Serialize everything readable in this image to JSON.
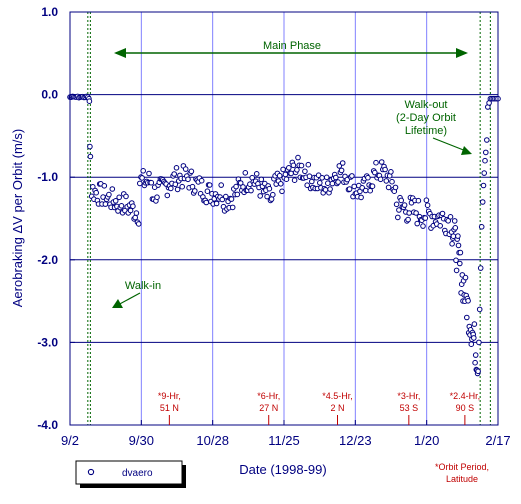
{
  "chart_data": {
    "type": "scatter",
    "xlabel": "Date (1998-99)",
    "ylabel": "Aerobraking ΔV per Orbit (m/s)",
    "x_ticks": [
      "9/2",
      "9/30",
      "10/28",
      "11/25",
      "12/23",
      "1/20",
      "2/17"
    ],
    "x_tick_days": [
      0,
      28,
      56,
      84,
      112,
      140,
      168
    ],
    "xlim": [
      0,
      168
    ],
    "y_ticks": [
      "1.0",
      "0.0",
      "-1.0",
      "-2.0",
      "-3.0",
      "-4.0"
    ],
    "y_tick_values": [
      1,
      0,
      -1,
      -2,
      -3,
      -4
    ],
    "ylim": [
      -4,
      1
    ],
    "grid": true,
    "legend": {
      "position": "bottom-left",
      "entries": [
        "dvaero"
      ]
    },
    "series": [
      {
        "name": "dvaero",
        "color": "#000080"
      }
    ],
    "phase_lines_days": [
      7,
      8,
      161,
      165
    ],
    "annotations": {
      "main_phase": "Main Phase",
      "walk_in": "Walk-in",
      "walk_out_1": "Walk-out",
      "walk_out_2": "(2-Day Orbit",
      "walk_out_3": "Lifetime)",
      "orbit_note_1": "*Orbit Period,",
      "orbit_note_2": "Latitude"
    },
    "orbit_markers": [
      {
        "day": 39,
        "label1": "*9-Hr,",
        "label2": "51 N"
      },
      {
        "day": 78,
        "label1": "*6-Hr,",
        "label2": "27 N"
      },
      {
        "day": 105,
        "label1": "*4.5-Hr,",
        "label2": "2 N"
      },
      {
        "day": 133,
        "label1": "*3-Hr,",
        "label2": "53 S"
      },
      {
        "day": 155,
        "label1": "*2.4-Hr,",
        "label2": "90 S"
      }
    ]
  }
}
